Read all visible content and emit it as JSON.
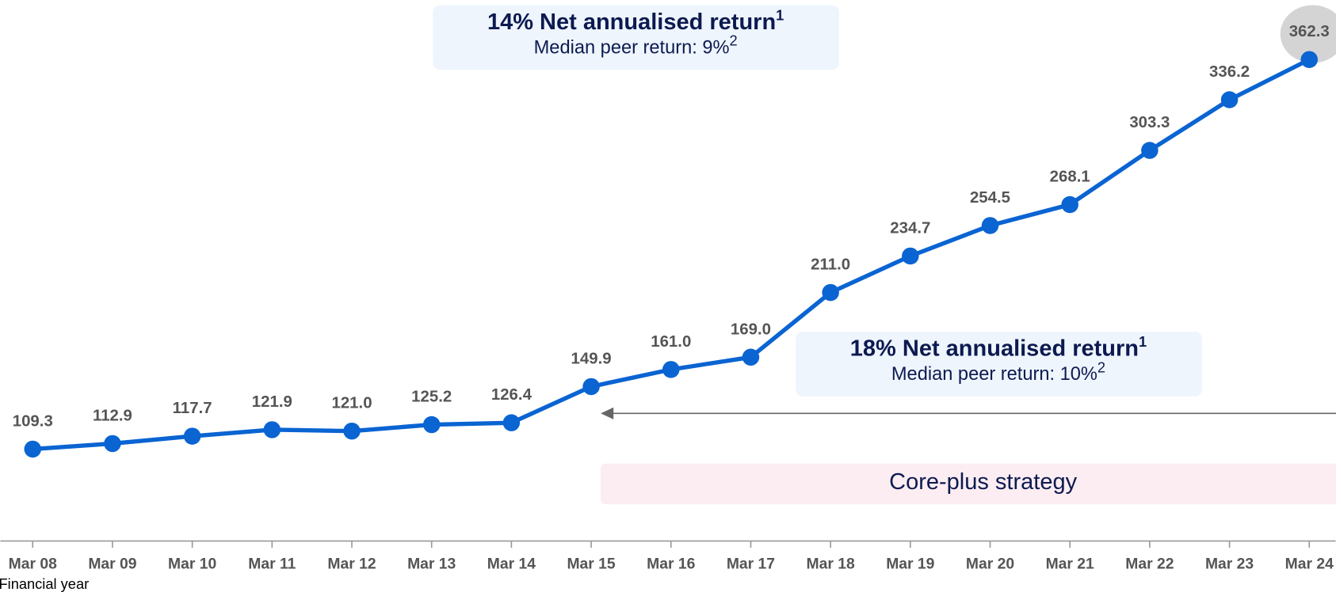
{
  "chart_data": {
    "type": "line",
    "categories": [
      "Mar 08",
      "Mar 09",
      "Mar 10",
      "Mar 11",
      "Mar 12",
      "Mar 13",
      "Mar 14",
      "Mar 15",
      "Mar 16",
      "Mar 17",
      "Mar 18",
      "Mar 19",
      "Mar 20",
      "Mar 21",
      "Mar 22",
      "Mar 23",
      "Mar 24"
    ],
    "series": [
      {
        "color": "#0a64d2",
        "values": [
          109.3,
          112.9,
          117.7,
          121.9,
          121.0,
          125.2,
          126.4,
          149.9,
          161.0,
          169.0,
          211.0,
          234.7,
          254.5,
          268.1,
          303.3,
          336.2,
          362.3
        ],
        "value_labels": [
          "109.3",
          "112.9",
          "117.7",
          "121.9",
          "121.0",
          "125.2",
          "126.4",
          "149.9",
          "161.0",
          "169.0",
          "211.0",
          "234.7",
          "254.5",
          "268.1",
          "303.3",
          "336.2",
          "362.3"
        ]
      }
    ],
    "xlabel": "Financial year",
    "annotations": [
      {
        "title": "14% Net annualised return",
        "title_sup": "1",
        "subtitle": "Median peer return: 9%",
        "subtitle_sup": "2"
      },
      {
        "title": "18% Net annualised return",
        "title_sup": "1",
        "subtitle": "Median peer return: 10%",
        "subtitle_sup": "2"
      }
    ],
    "strategy": "Core-plus strategy"
  }
}
